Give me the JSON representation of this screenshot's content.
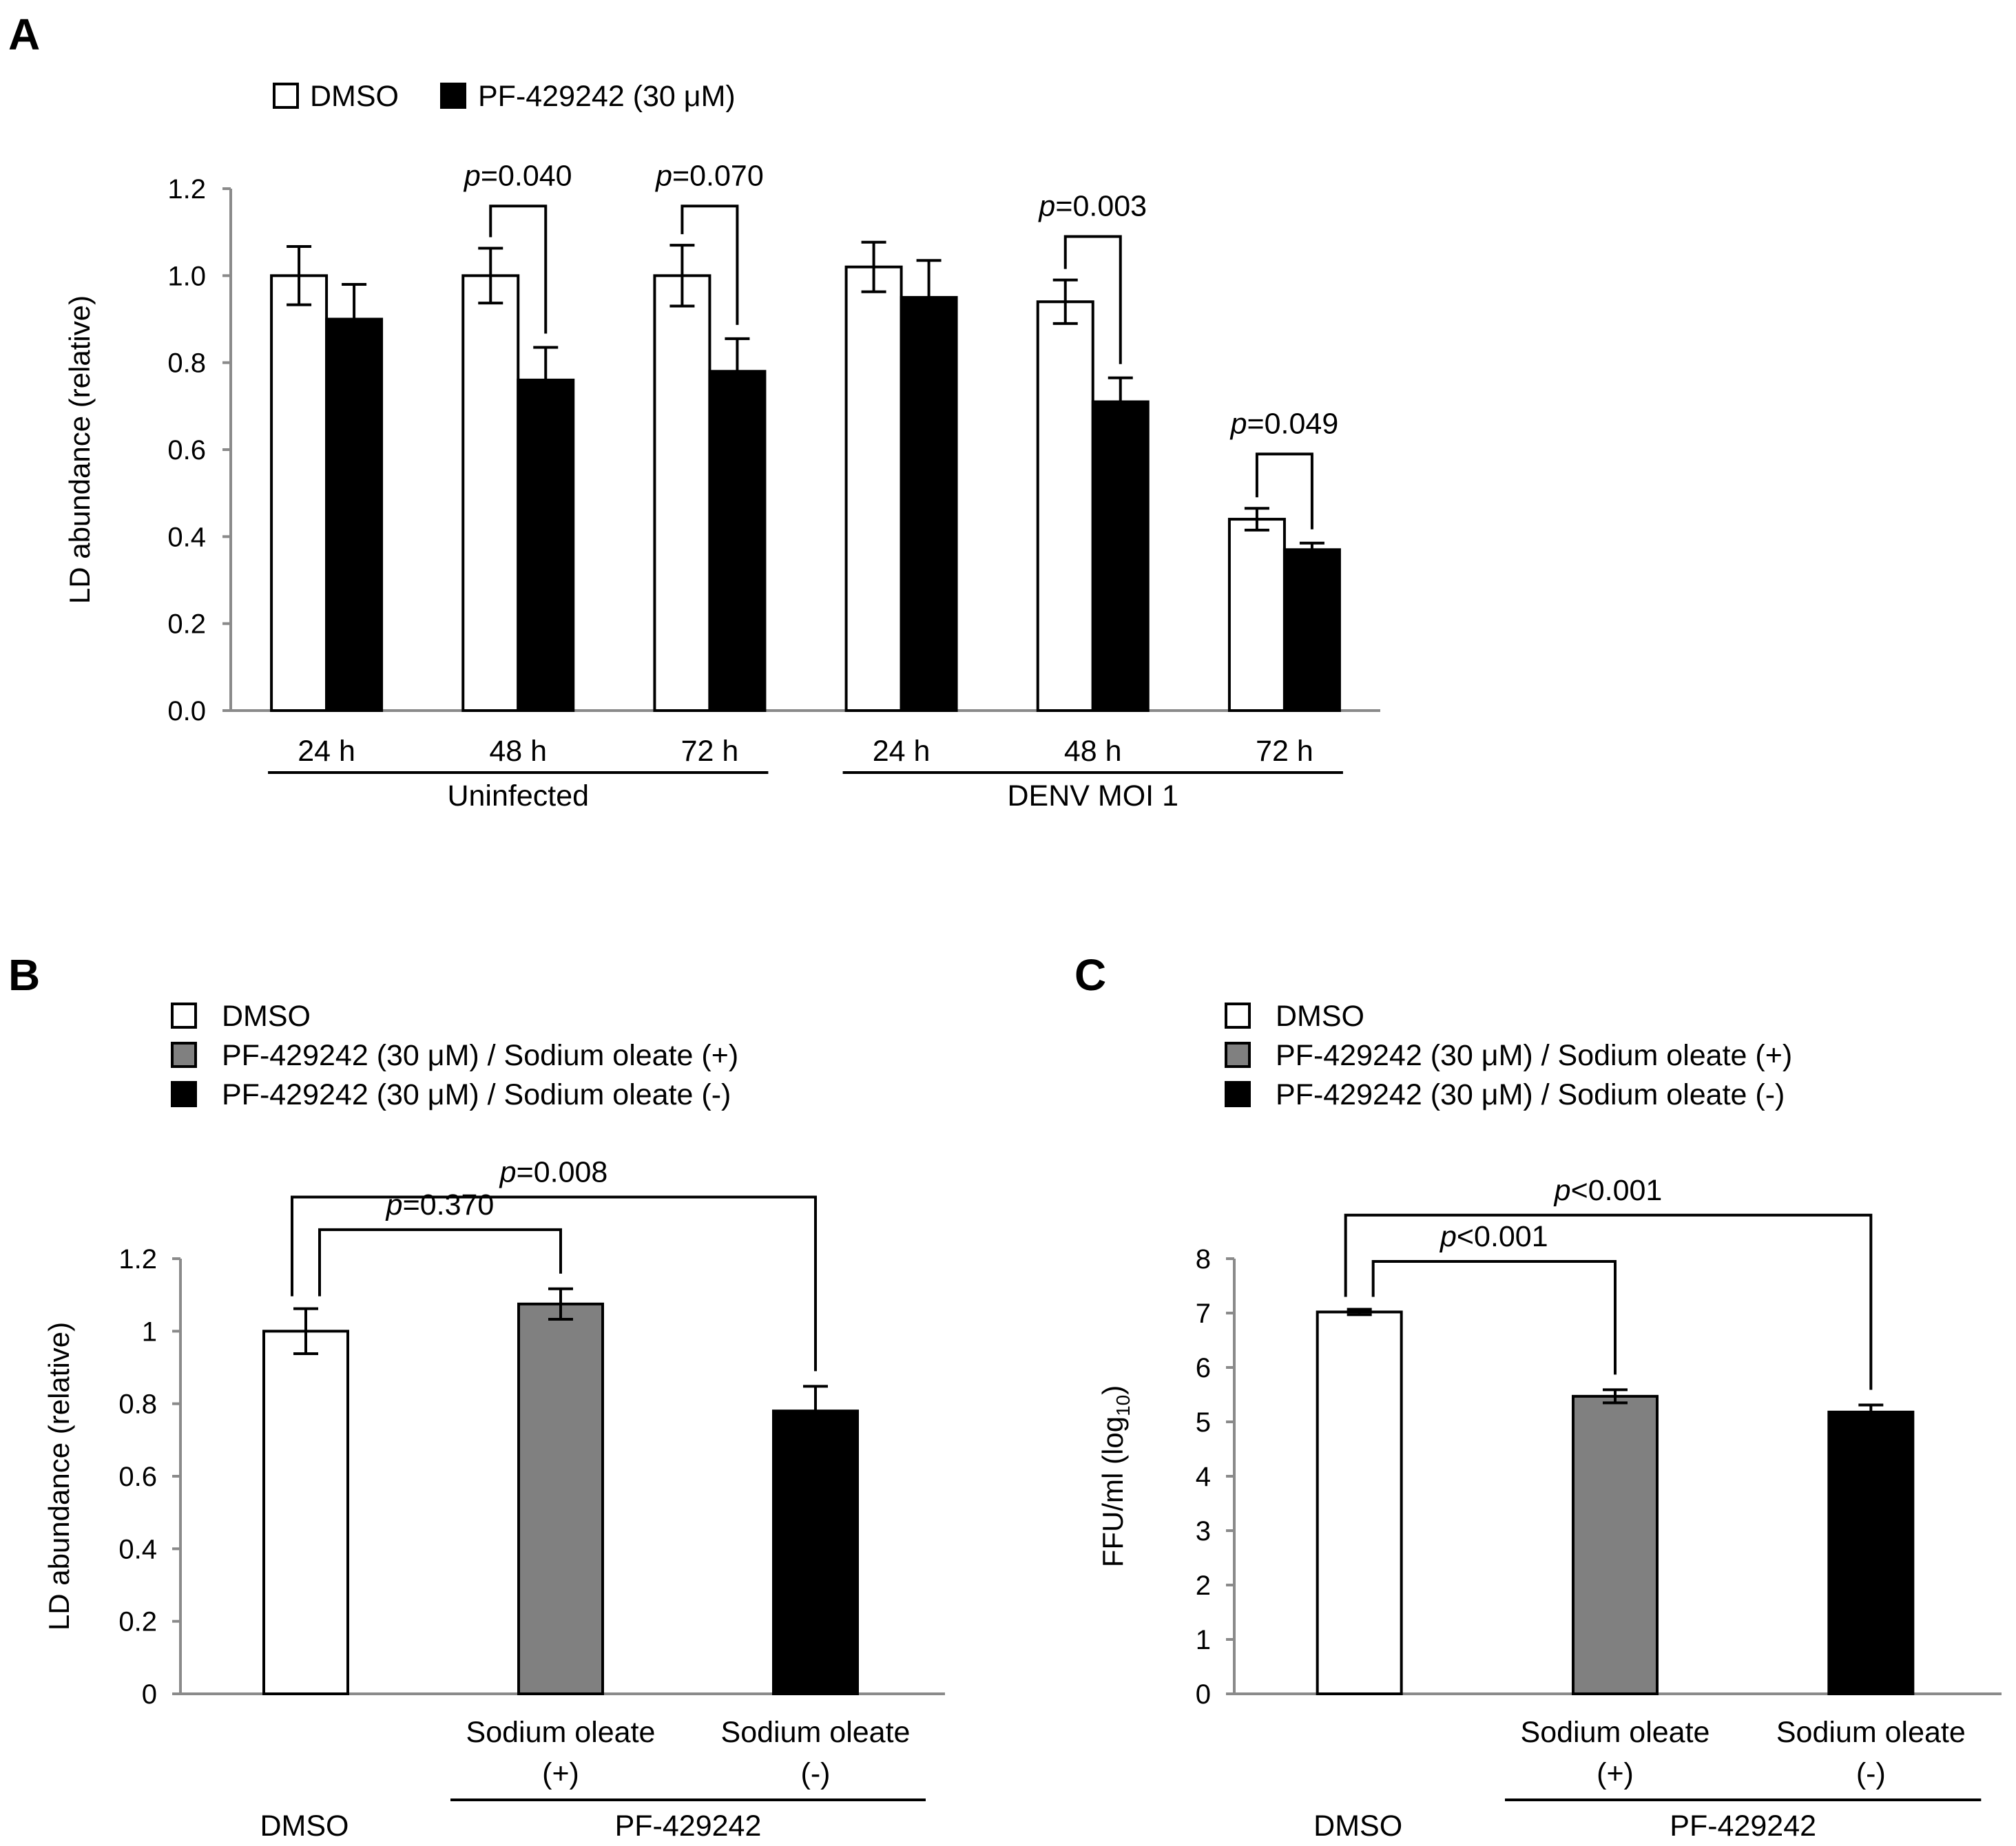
{
  "colors": {
    "white": "#ffffff",
    "gray": "#808080",
    "black": "#000000"
  },
  "chart_data": [
    {
      "id": "A",
      "panel_label": "A",
      "type": "bar",
      "legend": [
        {
          "name": "DMSO",
          "color": "#ffffff"
        },
        {
          "name": "PF-429242 (30 μM)",
          "color": "#000000"
        }
      ],
      "ylabel": "LD abundance (relative)",
      "ylim": [
        0,
        1.2
      ],
      "yticks": [
        "0.0",
        "0.2",
        "0.4",
        "0.6",
        "0.8",
        "1.0",
        "1.2"
      ],
      "categories": [
        "24 h",
        "48 h",
        "72 h",
        "24 h",
        "48 h",
        "72 h"
      ],
      "groups": [
        {
          "label": "Uninfected",
          "from": 0,
          "to": 2
        },
        {
          "label": "DENV MOI 1",
          "from": 3,
          "to": 5
        }
      ],
      "series": [
        {
          "name": "DMSO",
          "values": [
            1.0,
            1.0,
            1.0,
            1.02,
            0.94,
            0.44
          ],
          "errors": [
            0.067,
            0.063,
            0.07,
            0.057,
            0.05,
            0.025
          ]
        },
        {
          "name": "PF-429242 (30 μM)",
          "values": [
            0.9,
            0.76,
            0.78,
            0.95,
            0.71,
            0.37
          ],
          "errors": [
            0.08,
            0.075,
            0.075,
            0.085,
            0.055,
            0.015
          ]
        }
      ],
      "comparisons": [
        {
          "cat": 1,
          "prefix": "p",
          "text": "=0.040",
          "y": 1.16
        },
        {
          "cat": 2,
          "prefix": "p",
          "text": "=0.070",
          "y": 1.16
        },
        {
          "cat": 4,
          "prefix": "p",
          "text": "=0.003",
          "y": 1.09
        },
        {
          "cat": 5,
          "prefix": "p",
          "text": "=0.049",
          "y": 0.59
        }
      ]
    },
    {
      "id": "B",
      "panel_label": "B",
      "type": "bar",
      "legend": [
        {
          "name": "DMSO",
          "color": "#ffffff"
        },
        {
          "name": "PF-429242 (30 μM)  / Sodium oleate (+)",
          "color": "#808080"
        },
        {
          "name": "PF-429242 (30 μM)  / Sodium oleate (-)",
          "color": "#000000"
        }
      ],
      "ylabel": "LD abundance (relative)",
      "ylim": [
        0,
        1.2
      ],
      "yticks": [
        "0",
        "0.2",
        "0.4",
        "0.6",
        "0.8",
        "1",
        "1.2"
      ],
      "categories": [
        {
          "line1": "",
          "line2": ""
        },
        {
          "line1": "Sodium oleate",
          "line2": "(+)"
        },
        {
          "line1": "Sodium oleate",
          "line2": "(-)"
        }
      ],
      "bottom_labels": {
        "left": "DMSO",
        "group": "PF-429242"
      },
      "values": [
        1.0,
        1.075,
        0.78
      ],
      "errors": [
        0.062,
        0.042,
        0.068
      ],
      "bar_colors": [
        "#ffffff",
        "#808080",
        "#000000"
      ],
      "comparisons": [
        {
          "from": 0,
          "to": 1,
          "prefix": "p",
          "text": "=0.370",
          "y": 1.28
        },
        {
          "from": 0,
          "to": 2,
          "prefix": "p",
          "text": "=0.008",
          "y": 1.37
        }
      ]
    },
    {
      "id": "C",
      "panel_label": "C",
      "type": "bar",
      "legend": [
        {
          "name": "DMSO",
          "color": "#ffffff"
        },
        {
          "name": "PF-429242 (30 μM)  / Sodium oleate (+)",
          "color": "#808080"
        },
        {
          "name": "PF-429242 (30 μM)  / Sodium oleate (-)",
          "color": "#000000"
        }
      ],
      "ylabel": "FFU/ml (log",
      "ylabel_sub": "10",
      "ylabel_end": ")",
      "ylim": [
        0,
        8
      ],
      "yticks": [
        "0",
        "1",
        "2",
        "3",
        "4",
        "5",
        "6",
        "7",
        "8"
      ],
      "categories": [
        {
          "line1": "",
          "line2": ""
        },
        {
          "line1": "Sodium oleate",
          "line2": "(+)"
        },
        {
          "line1": "Sodium oleate",
          "line2": "(-)"
        }
      ],
      "bottom_labels": {
        "left": "DMSO",
        "group": "PF-429242"
      },
      "values": [
        7.02,
        5.47,
        5.18
      ],
      "errors": [
        0.05,
        0.12,
        0.13
      ],
      "bar_colors": [
        "#ffffff",
        "#808080",
        "#000000"
      ],
      "comparisons": [
        {
          "from": 0,
          "to": 1,
          "prefix": "p",
          "text": "<0.001",
          "y": 7.95
        },
        {
          "from": 0,
          "to": 2,
          "prefix": "p",
          "text": "<0.001",
          "y": 8.8
        }
      ]
    }
  ]
}
